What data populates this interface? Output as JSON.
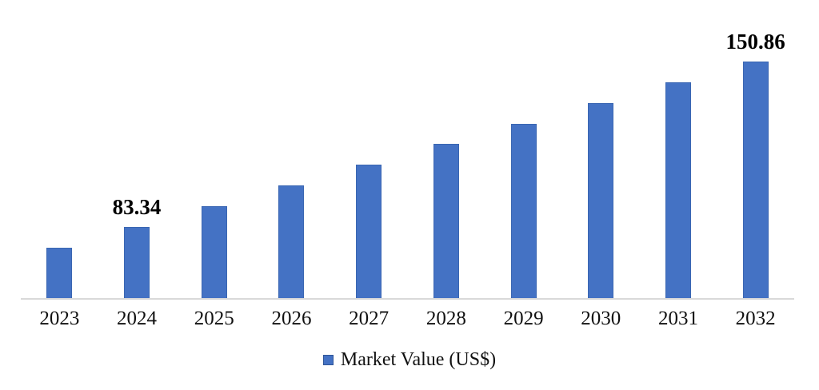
{
  "chart_data": {
    "type": "bar",
    "title": "",
    "xlabel": "",
    "ylabel": "",
    "categories": [
      "2023",
      "2024",
      "2025",
      "2026",
      "2027",
      "2028",
      "2029",
      "2030",
      "2031",
      "2032"
    ],
    "series": [
      {
        "name": "Market Value (US$)",
        "values": [
          74.9,
          83.34,
          91.78,
          100.22,
          108.66,
          117.1,
          125.54,
          133.98,
          142.42,
          150.86
        ],
        "data_labels": [
          null,
          "83.34",
          null,
          null,
          null,
          null,
          null,
          null,
          null,
          "150.86"
        ]
      }
    ],
    "ylim": [
      54.3,
      155.05
    ],
    "grid": false,
    "legend": {
      "position": "bottom",
      "entries": [
        "Market Value (US$)"
      ]
    },
    "colors": {
      "bar_fill": "#4472C4",
      "bar_border": "#3A66B2",
      "legend_marker": "#4472C4",
      "axis_line": "#D9D9D9",
      "label_text": "#000000"
    }
  }
}
